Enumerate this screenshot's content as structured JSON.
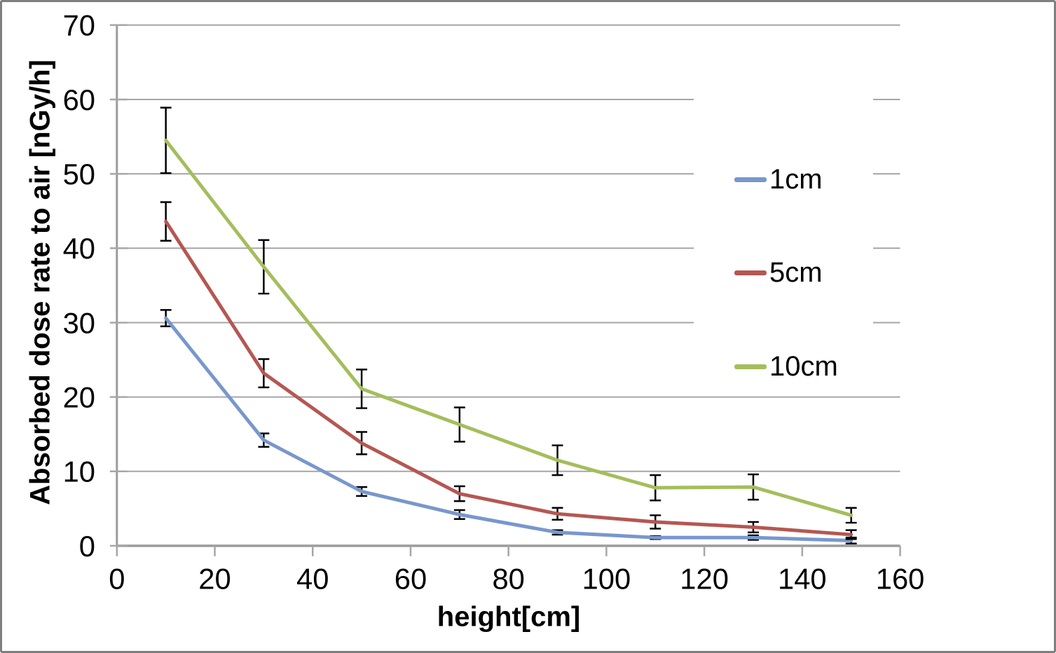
{
  "chart": {
    "y_axis_title": "Absorbed dose rate to air [nGy/h]",
    "x_axis_title": "height[cm]",
    "legend": [
      {
        "label": "1cm",
        "color": "#7897CC"
      },
      {
        "label": "5cm",
        "color": "#B55752"
      },
      {
        "label": "10cm",
        "color": "#A4BE5C"
      }
    ],
    "colors": {
      "gridline": "#A6A6A6",
      "axis": "#9B9B9B",
      "error_bar": "#000000",
      "background": "#FFFFFF",
      "frame_border": "#7F7F7F"
    }
  },
  "chart_data": {
    "type": "line",
    "title": "",
    "xlabel": "height[cm]",
    "ylabel": "Absorbed dose rate to air [nGy/h]",
    "x": [
      10,
      30,
      50,
      70,
      90,
      110,
      130,
      150
    ],
    "series": [
      {
        "name": "1cm",
        "color": "#7897CC",
        "values": [
          30.6,
          14.2,
          7.3,
          4.2,
          1.8,
          1.1,
          1.1,
          0.7
        ],
        "errors": [
          1.1,
          0.9,
          0.6,
          0.6,
          0.3,
          0.2,
          0.3,
          0.4
        ]
      },
      {
        "name": "5cm",
        "color": "#B55752",
        "values": [
          43.6,
          23.2,
          13.8,
          7.0,
          4.3,
          3.2,
          2.5,
          1.5
        ],
        "errors": [
          2.6,
          1.9,
          1.5,
          1.0,
          0.8,
          0.9,
          0.7,
          0.6
        ]
      },
      {
        "name": "10cm",
        "color": "#A4BE5C",
        "values": [
          54.5,
          37.5,
          21.1,
          16.3,
          11.5,
          7.8,
          7.9,
          4.1
        ],
        "errors": [
          4.4,
          3.6,
          2.6,
          2.3,
          2.0,
          1.7,
          1.7,
          1.0
        ]
      }
    ],
    "xlim": [
      0,
      160
    ],
    "ylim": [
      0,
      70
    ],
    "x_ticks": [
      0,
      20,
      40,
      60,
      80,
      100,
      120,
      140,
      160
    ],
    "y_ticks": [
      0,
      10,
      20,
      30,
      40,
      50,
      60,
      70
    ],
    "grid": "horizontal",
    "error_bars": true,
    "legend_position": "upper-right-overlay"
  }
}
